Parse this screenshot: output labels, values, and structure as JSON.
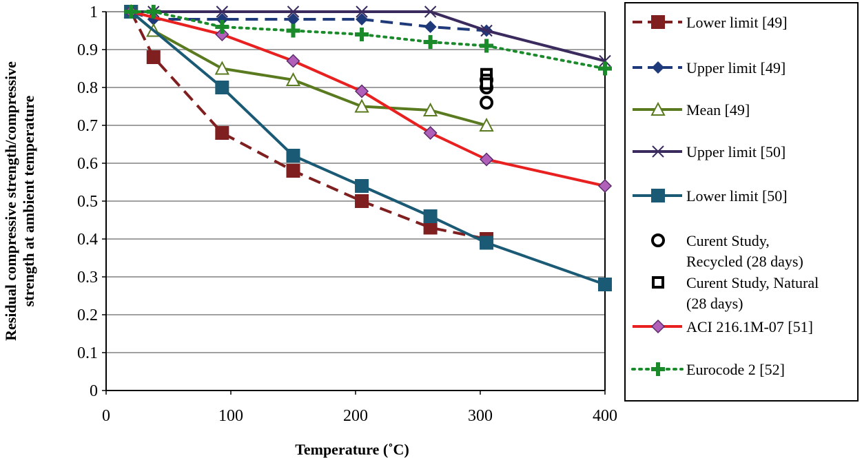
{
  "chart_data": {
    "type": "line",
    "xlabel": "Temperature (˚C)",
    "ylabel_lines": [
      "Residual compressive strength/compressive",
      "strength at ambient temperature"
    ],
    "xlim": [
      0,
      400
    ],
    "ylim": [
      0,
      1
    ],
    "xticks": [
      0,
      100,
      200,
      300,
      400
    ],
    "xtick_labels": [
      "0",
      "100",
      "200",
      "300",
      "400"
    ],
    "yticks": [
      0,
      0.1,
      0.2,
      0.3,
      0.4,
      0.5,
      0.6,
      0.7,
      0.8,
      0.9,
      1
    ],
    "ytick_labels": [
      "0",
      "0.1",
      "0.2",
      "0.3",
      "0.4",
      "0.5",
      "0.6",
      "0.7",
      "0.8",
      "0.9",
      "1"
    ],
    "grid": "horizontal",
    "legend_position": "right",
    "series": [
      {
        "id": "lower-limit-49",
        "name": "Lower limit [49]",
        "color": "#7f1f1f",
        "dash": "dashed",
        "marker": "square-filled",
        "x": [
          20,
          38,
          93,
          150,
          205,
          260,
          305
        ],
        "y": [
          1,
          0.88,
          0.68,
          0.58,
          0.5,
          0.43,
          0.4
        ]
      },
      {
        "id": "upper-limit-49",
        "name": "Upper limit [49]",
        "color": "#1f3a7a",
        "dash": "dashed",
        "marker": "diamond-filled",
        "x": [
          20,
          38,
          93,
          150,
          205,
          260,
          305
        ],
        "y": [
          1,
          0.98,
          0.98,
          0.98,
          0.98,
          0.96,
          0.95
        ]
      },
      {
        "id": "mean-49",
        "name": "Mean [49]",
        "color": "#5a7a1f",
        "dash": "solid",
        "marker": "triangle-open",
        "x": [
          20,
          38,
          93,
          150,
          205,
          260,
          305
        ],
        "y": [
          1,
          0.95,
          0.85,
          0.82,
          0.75,
          0.74,
          0.7
        ]
      },
      {
        "id": "upper-limit-50",
        "name": "Upper limit [50]",
        "color": "#3a2a5e",
        "dash": "solid",
        "marker": "x",
        "x": [
          20,
          38,
          93,
          150,
          205,
          260,
          305,
          400
        ],
        "y": [
          1,
          1,
          1,
          1,
          1,
          1,
          0.95,
          0.87
        ]
      },
      {
        "id": "lower-limit-50",
        "name": "Lower limit [50]",
        "color": "#1a5a75",
        "dash": "solid",
        "marker": "square-filled",
        "x": [
          20,
          93,
          150,
          205,
          260,
          305,
          400
        ],
        "y": [
          1,
          0.8,
          0.62,
          0.54,
          0.46,
          0.39,
          0.28
        ]
      },
      {
        "id": "current-recycled",
        "name": "Curent Study, Recycled (28 days)",
        "name_lines": [
          "Curent Study,",
          "Recycled (28 days)"
        ],
        "color": "#000000",
        "dash": "none",
        "marker": "circle-open",
        "x": [
          305,
          305,
          305
        ],
        "y": [
          0.82,
          0.8,
          0.76
        ]
      },
      {
        "id": "current-natural",
        "name": "Curent Study, Natural (28 days)",
        "name_lines": [
          "Curent Study, Natural",
          "(28 days)"
        ],
        "color": "#000000",
        "dash": "none",
        "marker": "square-open",
        "x": [
          305,
          305,
          305
        ],
        "y": [
          0.835,
          0.82,
          0.81
        ]
      },
      {
        "id": "aci",
        "name": "ACI 216.1M-07 [51]",
        "color": "#e8201f",
        "dash": "solid",
        "marker": "diamond-purple",
        "x": [
          20,
          93,
          150,
          205,
          260,
          305,
          400
        ],
        "y": [
          1,
          0.94,
          0.87,
          0.79,
          0.68,
          0.61,
          0.54
        ]
      },
      {
        "id": "eurocode",
        "name": "Eurocode 2 [52]",
        "color": "#1a8a2a",
        "dash": "dotted",
        "marker": "plus",
        "x": [
          20,
          38,
          93,
          150,
          205,
          260,
          305,
          400
        ],
        "y": [
          1,
          1,
          0.96,
          0.95,
          0.94,
          0.92,
          0.91,
          0.85
        ]
      }
    ]
  }
}
